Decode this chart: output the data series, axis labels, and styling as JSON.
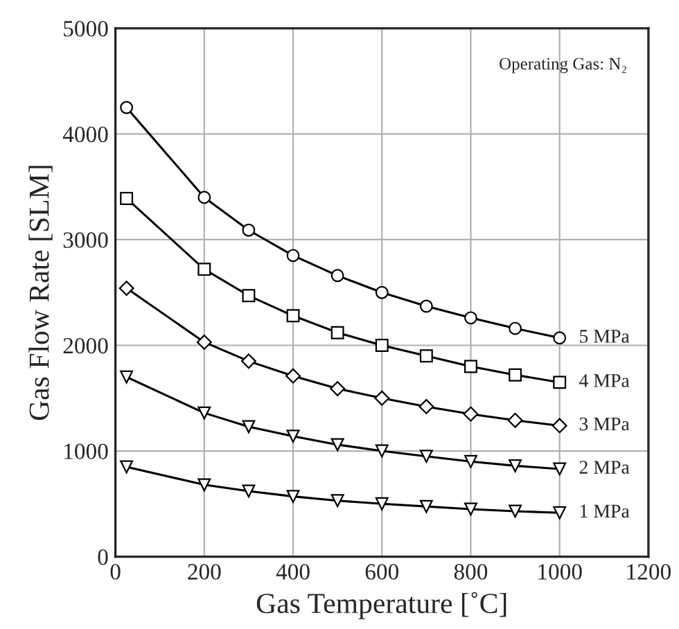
{
  "chart_data": {
    "type": "line",
    "xlabel": "Gas Temperature [˚C]",
    "ylabel": "Gas Flow Rate [SLM]",
    "annotations": [
      "Operating Gas: N₂"
    ],
    "x": [
      25,
      200,
      300,
      400,
      500,
      600,
      700,
      800,
      900,
      1000
    ],
    "series": [
      {
        "name": "5 MPa",
        "color": "#000000",
        "marker": "circle",
        "values": [
          4250,
          3400,
          3090,
          2850,
          2660,
          2500,
          2370,
          2260,
          2160,
          2070
        ]
      },
      {
        "name": "4 MPa",
        "color": "#000000",
        "marker": "square",
        "values": [
          3390,
          2720,
          2470,
          2280,
          2120,
          2000,
          1900,
          1800,
          1720,
          1650
        ]
      },
      {
        "name": "3 MPa",
        "color": "#000000",
        "marker": "diamond",
        "values": [
          2540,
          2030,
          1850,
          1710,
          1590,
          1500,
          1420,
          1350,
          1290,
          1240
        ]
      },
      {
        "name": "2 MPa",
        "color": "#000000",
        "marker": "triangle",
        "values": [
          1700,
          1360,
          1230,
          1140,
          1060,
          1000,
          950,
          900,
          860,
          830
        ]
      },
      {
        "name": "1 MPa",
        "color": "#000000",
        "marker": "triangle",
        "values": [
          850,
          680,
          620,
          570,
          530,
          500,
          475,
          450,
          430,
          415
        ]
      }
    ],
    "xlim": [
      0,
      1200
    ],
    "xticks": [
      0,
      200,
      400,
      600,
      800,
      1000,
      1200
    ],
    "ylim": [
      0,
      5000
    ],
    "yticks": [
      0,
      1000,
      2000,
      3000,
      4000,
      5000
    ],
    "grid": true,
    "legend": false,
    "line_style": "solid"
  }
}
